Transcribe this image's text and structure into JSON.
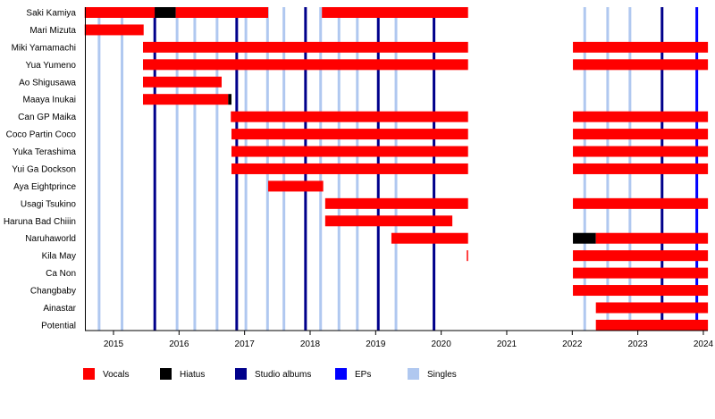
{
  "chart_data": {
    "type": "timeline",
    "xlim": [
      2014.56,
      2024.07
    ],
    "x_ticks": [
      "2015",
      "2016",
      "2017",
      "2018",
      "2019",
      "2020",
      "2021",
      "2022",
      "2023",
      "2024"
    ],
    "colors": {
      "Vocals": "#ff0000",
      "Hiatus": "#000000",
      "Studio albums": "#00008b",
      "EPs": "#0000ff",
      "Singles": "#b0c8f0"
    },
    "legend": {
      "placement": "bottom",
      "items": [
        "Vocals",
        "Hiatus",
        "Studio albums",
        "EPs",
        "Singles"
      ]
    },
    "members": [
      {
        "name": "Saki Kamiya",
        "periods": [
          [
            2014.56,
            2015.63,
            "Vocals"
          ],
          [
            2015.63,
            2015.95,
            "Hiatus"
          ],
          [
            2015.95,
            2017.36,
            "Vocals"
          ],
          [
            2018.18,
            2020.41,
            "Vocals"
          ]
        ]
      },
      {
        "name": "Mari Mizuta",
        "periods": [
          [
            2014.56,
            2015.46,
            "Vocals"
          ]
        ]
      },
      {
        "name": "Miki Yamamachi",
        "periods": [
          [
            2015.45,
            2020.41,
            "Vocals"
          ],
          [
            2022.01,
            2024.07,
            "Vocals"
          ]
        ]
      },
      {
        "name": "Yua Yumeno",
        "periods": [
          [
            2015.45,
            2020.41,
            "Vocals"
          ],
          [
            2022.01,
            2024.07,
            "Vocals"
          ]
        ]
      },
      {
        "name": "Ao Shigusawa",
        "periods": [
          [
            2015.45,
            2016.65,
            "Vocals"
          ]
        ]
      },
      {
        "name": "Maaya Inukai",
        "periods": [
          [
            2015.45,
            2016.75,
            "Vocals"
          ],
          [
            2016.75,
            2016.8,
            "Hiatus"
          ]
        ]
      },
      {
        "name": "Can GP Maika",
        "periods": [
          [
            2016.79,
            2020.41,
            "Vocals"
          ],
          [
            2022.01,
            2024.07,
            "Vocals"
          ]
        ]
      },
      {
        "name": "Coco Partin Coco",
        "periods": [
          [
            2016.8,
            2020.41,
            "Vocals"
          ],
          [
            2022.01,
            2024.07,
            "Vocals"
          ]
        ]
      },
      {
        "name": "Yuka Terashima",
        "periods": [
          [
            2016.8,
            2020.41,
            "Vocals"
          ],
          [
            2022.01,
            2024.07,
            "Vocals"
          ]
        ]
      },
      {
        "name": "Yui Ga Dockson",
        "periods": [
          [
            2016.8,
            2020.41,
            "Vocals"
          ],
          [
            2022.01,
            2024.07,
            "Vocals"
          ]
        ]
      },
      {
        "name": "Aya Eightprince",
        "periods": [
          [
            2017.36,
            2018.2,
            "Vocals"
          ]
        ]
      },
      {
        "name": "Usagi Tsukino",
        "periods": [
          [
            2018.23,
            2020.41,
            "Vocals"
          ],
          [
            2022.01,
            2024.07,
            "Vocals"
          ]
        ]
      },
      {
        "name": "Haruna Bad Chiiin",
        "periods": [
          [
            2018.23,
            2020.17,
            "Vocals"
          ]
        ]
      },
      {
        "name": "Naruhaworld",
        "periods": [
          [
            2019.24,
            2020.41,
            "Vocals"
          ],
          [
            2022.01,
            2022.36,
            "Hiatus"
          ],
          [
            2022.36,
            2024.07,
            "Vocals"
          ]
        ]
      },
      {
        "name": "Kila May",
        "periods": [
          [
            2020.39,
            2020.41,
            "Vocals"
          ],
          [
            2022.01,
            2024.07,
            "Vocals"
          ]
        ]
      },
      {
        "name": "Ca Non",
        "periods": [
          [
            2022.01,
            2024.07,
            "Vocals"
          ]
        ]
      },
      {
        "name": "Changbaby",
        "periods": [
          [
            2022.01,
            2024.07,
            "Vocals"
          ]
        ]
      },
      {
        "name": "Ainastar",
        "periods": [
          [
            2022.36,
            2024.07,
            "Vocals"
          ]
        ]
      },
      {
        "name": "Potential",
        "periods": [
          [
            2022.36,
            2024.07,
            "Vocals"
          ]
        ]
      }
    ],
    "studio_albums": [
      2015.63,
      2016.88,
      2017.93,
      2019.04,
      2019.89,
      2023.37
    ],
    "eps": [
      2023.9
    ],
    "singles": [
      2014.78,
      2015.13,
      2015.97,
      2016.24,
      2016.58,
      2017.02,
      2017.35,
      2017.6,
      2018.16,
      2018.44,
      2018.72,
      2019.31,
      2022.19,
      2022.54,
      2022.88
    ]
  }
}
